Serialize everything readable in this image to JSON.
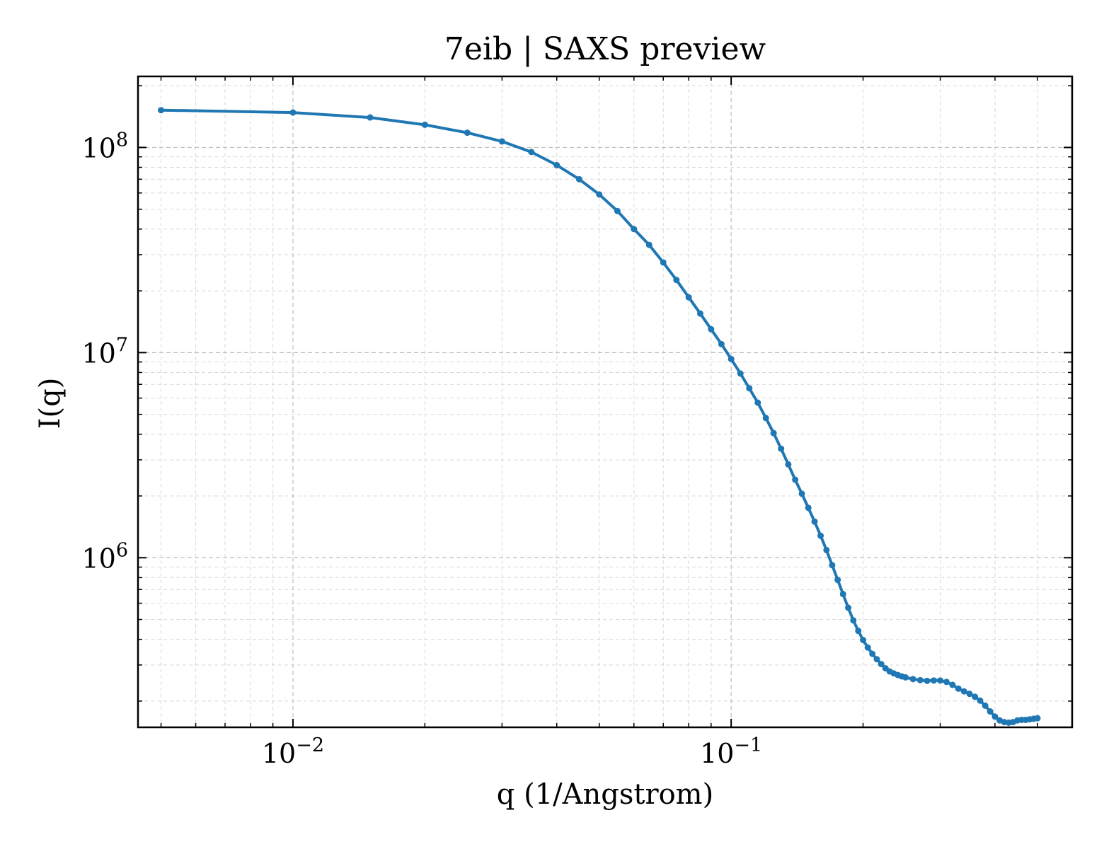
{
  "chart_data": {
    "type": "line",
    "title": "7eib | SAXS preview",
    "xlabel": "q (1/Angstrom)",
    "ylabel": "I(q)",
    "xscale": "log",
    "yscale": "log",
    "xlim": [
      0.00443,
      0.6
    ],
    "ylim": [
      149000,
      222000000
    ],
    "grid": true,
    "x_ticks": [
      {
        "value": 0.01,
        "base": "10",
        "exp": "−2"
      },
      {
        "value": 0.1,
        "base": "10",
        "exp": "−1"
      }
    ],
    "y_ticks": [
      {
        "value": 1000000,
        "base": "10",
        "exp": "6"
      },
      {
        "value": 10000000,
        "base": "10",
        "exp": "7"
      },
      {
        "value": 100000000,
        "base": "10",
        "exp": "8"
      }
    ],
    "color": "#1f77b4",
    "series": [
      {
        "x": [
          0.005,
          0.01,
          0.015,
          0.02,
          0.025,
          0.03,
          0.035,
          0.04,
          0.045,
          0.05,
          0.055,
          0.06,
          0.065,
          0.07,
          0.075,
          0.08,
          0.085,
          0.09,
          0.095,
          0.1,
          0.105,
          0.11,
          0.115,
          0.12,
          0.125,
          0.13,
          0.135,
          0.14,
          0.145,
          0.15,
          0.155,
          0.16,
          0.165,
          0.17,
          0.175,
          0.18,
          0.185,
          0.19,
          0.195,
          0.2,
          0.205,
          0.21,
          0.215,
          0.22,
          0.225,
          0.23,
          0.235,
          0.24,
          0.245,
          0.25,
          0.26,
          0.27,
          0.28,
          0.29,
          0.3,
          0.31,
          0.32,
          0.33,
          0.34,
          0.35,
          0.36,
          0.37,
          0.38,
          0.39,
          0.4,
          0.41,
          0.42,
          0.43,
          0.44,
          0.45,
          0.46,
          0.47,
          0.48,
          0.49,
          0.5
        ],
        "y": [
          152000000,
          148000000,
          140000000,
          129000000,
          118000000,
          107000000,
          95000000,
          82000000,
          70000000,
          59000000,
          49000000,
          40000000,
          33500000,
          27500000,
          22600000,
          18600000,
          15500000,
          13000000,
          11000000,
          9300000,
          7900000,
          6700000,
          5700000,
          4800000,
          4050000,
          3400000,
          2850000,
          2400000,
          2050000,
          1750000,
          1500000,
          1280000,
          1090000,
          920000,
          780000,
          665000,
          570000,
          495000,
          440000,
          397000,
          365000,
          340000,
          320000,
          303000,
          289000,
          279000,
          273000,
          268000,
          264000,
          261000,
          256000,
          253000,
          251000,
          252000,
          252000,
          248000,
          240000,
          230000,
          223000,
          217000,
          210000,
          201000,
          190000,
          178000,
          168000,
          161000,
          158000,
          157000,
          158000,
          161000,
          162000,
          162000,
          163000,
          164000,
          165000
        ]
      }
    ]
  }
}
